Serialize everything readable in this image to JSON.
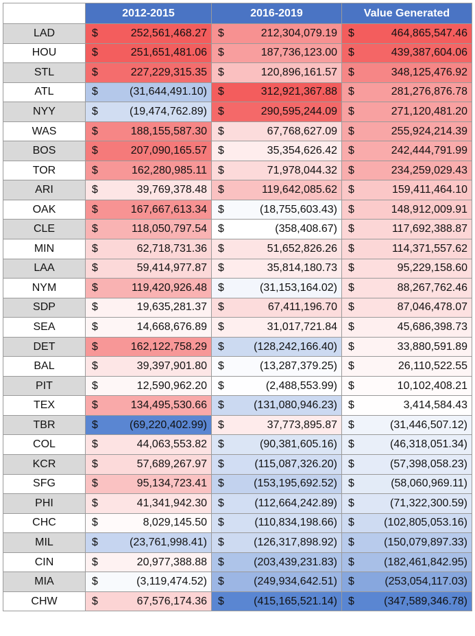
{
  "headers": [
    "",
    "2012-2015",
    "2016-2019",
    "Value Generated"
  ],
  "currency_symbol": "$",
  "colors": {
    "header": "#4a74c4",
    "positive_max": "#f35d5d",
    "negative_max": "#5a86d2",
    "neutral": "#ffffff",
    "team_shade": "#d9d9d9"
  },
  "rows": [
    {
      "team": "LAD",
      "v2012_2015": "252,561,468.27",
      "v2016_2019": "212,304,079.19",
      "value_generated": "464,865,547.46"
    },
    {
      "team": "HOU",
      "v2012_2015": "251,651,481.06",
      "v2016_2019": "187,736,123.00",
      "value_generated": "439,387,604.06"
    },
    {
      "team": "STL",
      "v2012_2015": "227,229,315.35",
      "v2016_2019": "120,896,161.57",
      "value_generated": "348,125,476.92"
    },
    {
      "team": "ATL",
      "v2012_2015": "(31,644,491.10)",
      "v2016_2019": "312,921,367.88",
      "value_generated": "281,276,876.78"
    },
    {
      "team": "NYY",
      "v2012_2015": "(19,474,762.89)",
      "v2016_2019": "290,595,244.09",
      "value_generated": "271,120,481.20"
    },
    {
      "team": "WAS",
      "v2012_2015": "188,155,587.30",
      "v2016_2019": "67,768,627.09",
      "value_generated": "255,924,214.39"
    },
    {
      "team": "BOS",
      "v2012_2015": "207,090,165.57",
      "v2016_2019": "35,354,626.42",
      "value_generated": "242,444,791.99"
    },
    {
      "team": "TOR",
      "v2012_2015": "162,280,985.11",
      "v2016_2019": "71,978,044.32",
      "value_generated": "234,259,029.43"
    },
    {
      "team": "ARI",
      "v2012_2015": "39,769,378.48",
      "v2016_2019": "119,642,085.62",
      "value_generated": "159,411,464.10"
    },
    {
      "team": "OAK",
      "v2012_2015": "167,667,613.34",
      "v2016_2019": "(18,755,603.43)",
      "value_generated": "148,912,009.91"
    },
    {
      "team": "CLE",
      "v2012_2015": "118,050,797.54",
      "v2016_2019": "(358,408.67)",
      "value_generated": "117,692,388.87"
    },
    {
      "team": "MIN",
      "v2012_2015": "62,718,731.36",
      "v2016_2019": "51,652,826.26",
      "value_generated": "114,371,557.62"
    },
    {
      "team": "LAA",
      "v2012_2015": "59,414,977.87",
      "v2016_2019": "35,814,180.73",
      "value_generated": "95,229,158.60"
    },
    {
      "team": "NYM",
      "v2012_2015": "119,420,926.48",
      "v2016_2019": "(31,153,164.02)",
      "value_generated": "88,267,762.46"
    },
    {
      "team": "SDP",
      "v2012_2015": "19,635,281.37",
      "v2016_2019": "67,411,196.70",
      "value_generated": "87,046,478.07"
    },
    {
      "team": "SEA",
      "v2012_2015": "14,668,676.89",
      "v2016_2019": "31,017,721.84",
      "value_generated": "45,686,398.73"
    },
    {
      "team": "DET",
      "v2012_2015": "162,122,758.29",
      "v2016_2019": "(128,242,166.40)",
      "value_generated": "33,880,591.89"
    },
    {
      "team": "BAL",
      "v2012_2015": "39,397,901.80",
      "v2016_2019": "(13,287,379.25)",
      "value_generated": "26,110,522.55"
    },
    {
      "team": "PIT",
      "v2012_2015": "12,590,962.20",
      "v2016_2019": "(2,488,553.99)",
      "value_generated": "10,102,408.21"
    },
    {
      "team": "TEX",
      "v2012_2015": "134,495,530.66",
      "v2016_2019": "(131,080,946.23)",
      "value_generated": "3,414,584.43"
    },
    {
      "team": "TBR",
      "v2012_2015": "(69,220,402.99)",
      "v2016_2019": "37,773,895.87",
      "value_generated": "(31,446,507.12)"
    },
    {
      "team": "COL",
      "v2012_2015": "44,063,553.82",
      "v2016_2019": "(90,381,605.16)",
      "value_generated": "(46,318,051.34)"
    },
    {
      "team": "KCR",
      "v2012_2015": "57,689,267.97",
      "v2016_2019": "(115,087,326.20)",
      "value_generated": "(57,398,058.23)"
    },
    {
      "team": "SFG",
      "v2012_2015": "95,134,723.41",
      "v2016_2019": "(153,195,692.52)",
      "value_generated": "(58,060,969.11)"
    },
    {
      "team": "PHI",
      "v2012_2015": "41,341,942.30",
      "v2016_2019": "(112,664,242.89)",
      "value_generated": "(71,322,300.59)"
    },
    {
      "team": "CHC",
      "v2012_2015": "8,029,145.50",
      "v2016_2019": "(110,834,198.66)",
      "value_generated": "(102,805,053.16)"
    },
    {
      "team": "MIL",
      "v2012_2015": "(23,761,998.41)",
      "v2016_2019": "(126,317,898.92)",
      "value_generated": "(150,079,897.33)"
    },
    {
      "team": "CIN",
      "v2012_2015": "20,977,388.88",
      "v2016_2019": "(203,439,231.83)",
      "value_generated": "(182,461,842.95)"
    },
    {
      "team": "MIA",
      "v2012_2015": "(3,119,474.52)",
      "v2016_2019": "(249,934,642.51)",
      "value_generated": "(253,054,117.03)"
    },
    {
      "team": "CHW",
      "v2012_2015": "67,576,174.36",
      "v2016_2019": "(415,165,521.14)",
      "value_generated": "(347,589,346.78)"
    }
  ]
}
